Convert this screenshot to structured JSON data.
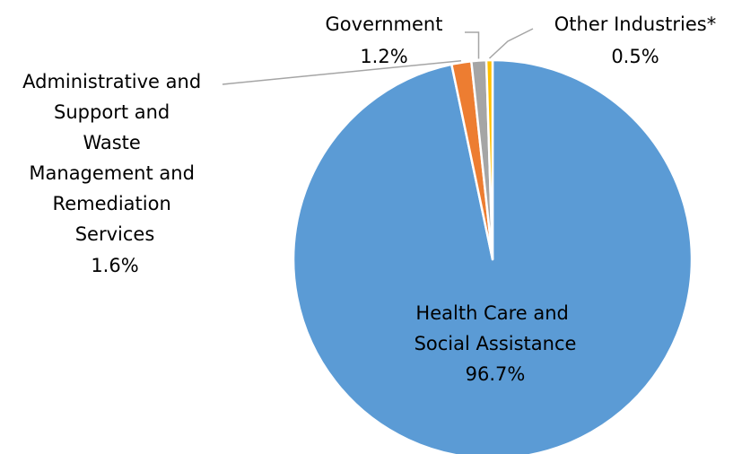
{
  "chart_data": {
    "type": "pie",
    "title": "",
    "slices": [
      {
        "label_lines": [
          "Health Care and",
          "Social Assistance"
        ],
        "value": 96.7,
        "value_label": "96.7%",
        "color": "#5B9BD5"
      },
      {
        "label_lines": [
          "Administrative and",
          "Support and",
          "Waste",
          "Management and",
          "Remediation",
          "Services"
        ],
        "value": 1.6,
        "value_label": "1.6%",
        "color": "#ED7D31"
      },
      {
        "label_lines": [
          "Government"
        ],
        "value": 1.2,
        "value_label": "1.2%",
        "color": "#A5A5A5"
      },
      {
        "label_lines": [
          "Other Industries*"
        ],
        "value": 0.5,
        "value_label": "0.5%",
        "color": "#FFC000"
      }
    ],
    "legend": "none",
    "leader_line_color": "#A5A5A5"
  }
}
